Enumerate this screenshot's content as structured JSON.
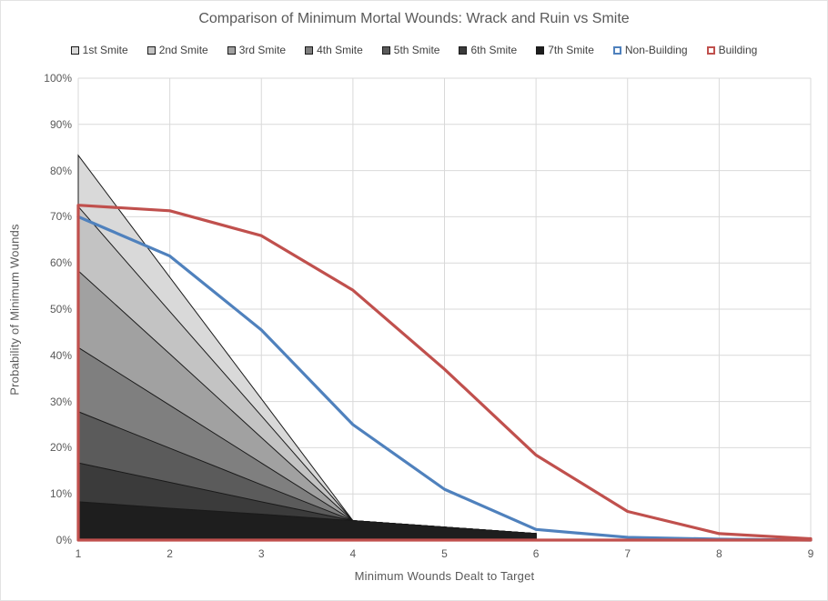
{
  "title": "Comparison of Minimum Mortal Wounds: Wrack and Ruin vs Smite",
  "axes": {
    "x_label": "Minimum Wounds Dealt to Target",
    "y_label": "Probability of Minimum  Wounds",
    "x_ticks": [
      "1",
      "2",
      "3",
      "4",
      "5",
      "6",
      "7",
      "8",
      "9"
    ],
    "y_ticks": [
      "100%",
      "90%",
      "80%",
      "70%",
      "60%",
      "50%",
      "40%",
      "30%",
      "20%",
      "10%",
      "0%"
    ]
  },
  "legend": {
    "items": [
      {
        "label": "1st Smite",
        "type": "area",
        "fill": "#d9d9d9",
        "border": "#1a1a1a"
      },
      {
        "label": "2nd Smite",
        "type": "area",
        "fill": "#c3c3c3",
        "border": "#1a1a1a"
      },
      {
        "label": "3rd Smite",
        "type": "area",
        "fill": "#a1a1a1",
        "border": "#1a1a1a"
      },
      {
        "label": "4th Smite",
        "type": "area",
        "fill": "#7f7f7f",
        "border": "#1a1a1a"
      },
      {
        "label": "5th Smite",
        "type": "area",
        "fill": "#5b5b5b",
        "border": "#1a1a1a"
      },
      {
        "label": "6th Smite",
        "type": "area",
        "fill": "#3b3b3b",
        "border": "#1a1a1a"
      },
      {
        "label": "7th Smite",
        "type": "area",
        "fill": "#1e1e1e",
        "border": "#1a1a1a"
      },
      {
        "label": "Non-Building",
        "type": "line",
        "fill": "#ffffff",
        "border": "#4f81bd"
      },
      {
        "label": "Building",
        "type": "line",
        "fill": "#ffffff",
        "border": "#c0504d"
      }
    ]
  },
  "chart_data": {
    "type": "combo: overlapping area series (Smite) + line series (Wrack and Ruin)",
    "title": "Comparison of Minimum Mortal Wounds: Wrack and Ruin vs Smite",
    "xlabel": "Minimum Wounds Dealt to Target",
    "ylabel": "Probability of Minimum Wounds",
    "xlim": [
      1,
      9
    ],
    "ylim_percent": [
      0,
      100
    ],
    "y_tick_step_percent": 10,
    "grid": true,
    "legend_position": "top",
    "series": [
      {
        "name": "1st Smite",
        "style": "area",
        "color": "#d9d9d9",
        "x": [
          1,
          2,
          3,
          4,
          5,
          6
        ],
        "values_percent": [
          83.3,
          56.9,
          30.6,
          4.2,
          2.8,
          1.4
        ]
      },
      {
        "name": "2nd Smite",
        "style": "area",
        "color": "#c3c3c3",
        "x": [
          1,
          2,
          3,
          4,
          5,
          6
        ],
        "values_percent": [
          72.2,
          49.5,
          26.9,
          4.2,
          2.8,
          1.4
        ]
      },
      {
        "name": "3rd Smite",
        "style": "area",
        "color": "#a1a1a1",
        "x": [
          1,
          2,
          3,
          4,
          5,
          6
        ],
        "values_percent": [
          58.3,
          40.3,
          22.2,
          4.2,
          2.8,
          1.4
        ]
      },
      {
        "name": "4th Smite",
        "style": "area",
        "color": "#7f7f7f",
        "x": [
          1,
          2,
          3,
          4,
          5,
          6
        ],
        "values_percent": [
          41.7,
          29.2,
          16.7,
          4.2,
          2.8,
          1.4
        ]
      },
      {
        "name": "5th Smite",
        "style": "area",
        "color": "#5b5b5b",
        "x": [
          1,
          2,
          3,
          4,
          5,
          6
        ],
        "values_percent": [
          27.8,
          19.9,
          12.0,
          4.2,
          2.8,
          1.4
        ]
      },
      {
        "name": "6th Smite",
        "style": "area",
        "color": "#3b3b3b",
        "x": [
          1,
          2,
          3,
          4,
          5,
          6
        ],
        "values_percent": [
          16.7,
          12.5,
          8.3,
          4.2,
          2.8,
          1.4
        ]
      },
      {
        "name": "7th Smite",
        "style": "area",
        "color": "#1e1e1e",
        "x": [
          1,
          2,
          3,
          4,
          5,
          6
        ],
        "values_percent": [
          8.3,
          6.9,
          5.6,
          4.2,
          2.8,
          1.4
        ]
      },
      {
        "name": "Non-Building",
        "style": "line",
        "color": "#4f81bd",
        "x": [
          1,
          2,
          3,
          4,
          5,
          6,
          7,
          8,
          9
        ],
        "values_percent": [
          70.0,
          61.5,
          45.5,
          25.0,
          11.0,
          2.3,
          0.6,
          0.2,
          0.0
        ]
      },
      {
        "name": "Building",
        "style": "line-closed-outline",
        "color": "#c0504d",
        "x": [
          1,
          2,
          3,
          4,
          5,
          6,
          7,
          8,
          9
        ],
        "values_percent": [
          72.5,
          71.3,
          65.9,
          54.1,
          37.0,
          18.4,
          6.2,
          1.4,
          0.3
        ]
      }
    ]
  },
  "colors": {
    "grid": "#d9d9d9",
    "text": "#595959",
    "area_border": "#1a1a1a",
    "non_building_line": "#4f81bd",
    "building_line": "#c0504d",
    "background": "#ffffff"
  }
}
